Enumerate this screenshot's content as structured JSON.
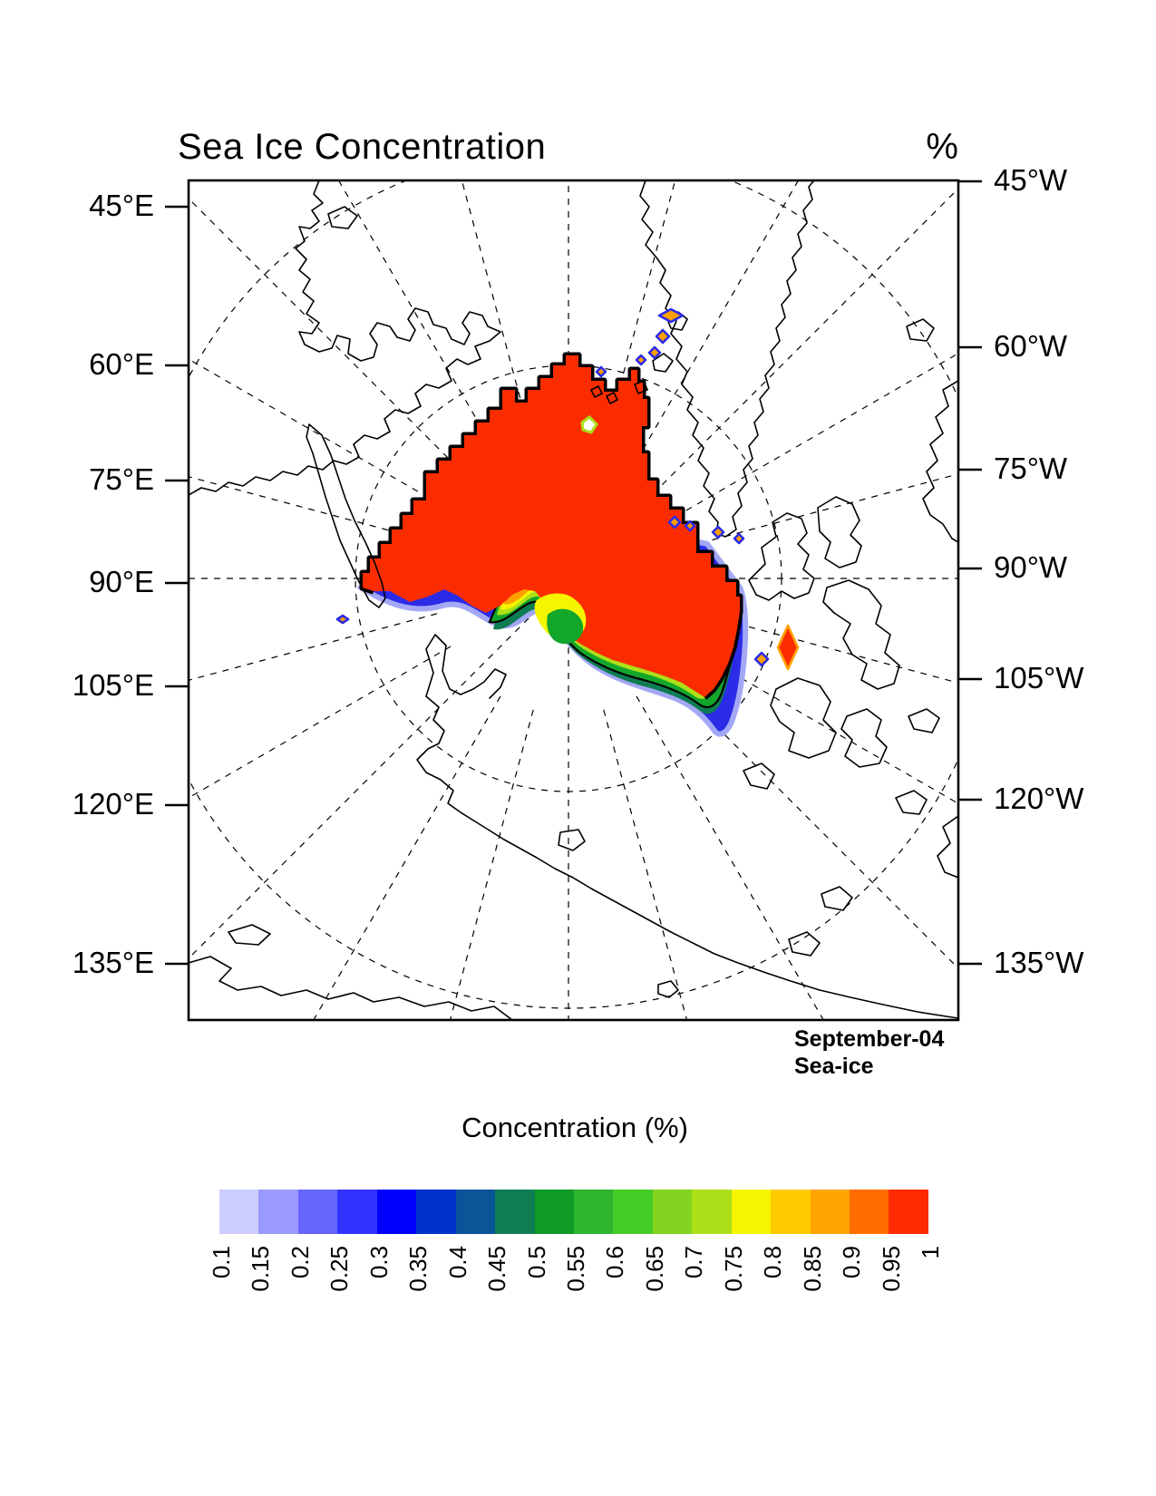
{
  "title": "Sea Ice Concentration",
  "units_label": "%",
  "map": {
    "left_axis_labels": [
      "45°E",
      "60°E",
      "75°E",
      "90°E",
      "105°E",
      "120°E",
      "135°E"
    ],
    "right_axis_labels": [
      "45°W",
      "60°W",
      "75°W",
      "90°W",
      "105°W",
      "120°W",
      "135°W"
    ],
    "annotation_line1": "September-04",
    "annotation_line2": "Sea-ice"
  },
  "colorbar": {
    "title": "Concentration (%)",
    "labels": [
      "0.1",
      "0.15",
      "0.2",
      "0.25",
      "0.3",
      "0.35",
      "0.4",
      "0.45",
      "0.5",
      "0.55",
      "0.6",
      "0.65",
      "0.7",
      "0.75",
      "0.8",
      "0.85",
      "0.9",
      "0.95",
      "1"
    ],
    "colors": [
      "#CCCCFF",
      "#9999FF",
      "#6666FF",
      "#3333FF",
      "#0000FE",
      "#0032CC",
      "#0A5498",
      "#0E7D52",
      "#0F9B25",
      "#2EB52E",
      "#45CC27",
      "#82D420",
      "#ACE019",
      "#F5F500",
      "#FFCB00",
      "#FFA400",
      "#FF6D00",
      "#FF2B00"
    ]
  },
  "colors": {
    "ice_fill": "#FB2D00",
    "ice_edge_blue": "#2B2BE8",
    "contour": "#000000"
  },
  "chart_data": {
    "type": "heatmap",
    "projection": "polar-stereographic (Arctic)",
    "variable": "Sea ice concentration",
    "units": "%",
    "month_label": "September-04",
    "field_label": "Sea-ice",
    "levels": [
      0.1,
      0.15,
      0.2,
      0.25,
      0.3,
      0.35,
      0.4,
      0.45,
      0.5,
      0.55,
      0.6,
      0.65,
      0.7,
      0.75,
      0.8,
      0.85,
      0.9,
      0.95,
      1
    ],
    "palette": [
      "#CCCCFF",
      "#9999FF",
      "#6666FF",
      "#3333FF",
      "#0000FE",
      "#0032CC",
      "#0A5498",
      "#0E7D52",
      "#0F9B25",
      "#2EB52E",
      "#45CC27",
      "#82D420",
      "#ACE019",
      "#F5F500",
      "#FFCB00",
      "#FFA400",
      "#FF6D00",
      "#FF2B00"
    ],
    "description": "Central Arctic ice pack at >=0.95 concentration (red) with marginal ice zone of lower concentrations (yellow-green-blue fringe) along the Siberian/Beaufort side; open water and land shown white with black coastlines.",
    "legend_position": "bottom",
    "grid": "dashed meridians every 15° and dashed latitude circles"
  }
}
